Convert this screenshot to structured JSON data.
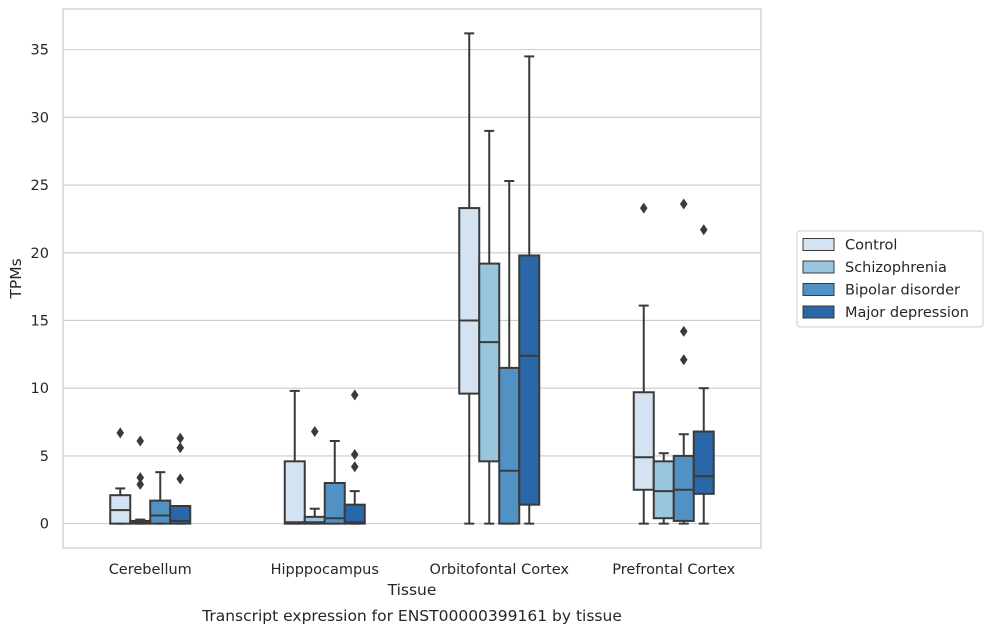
{
  "chart_data": {
    "type": "box",
    "title": "",
    "caption": "Transcript expression for ENST00000399161 by tissue",
    "xlabel": "Tissue",
    "ylabel": "TPMs",
    "ylim": [
      -1.8,
      38
    ],
    "yticks": [
      0,
      5,
      10,
      15,
      20,
      25,
      30,
      35
    ],
    "grid": "horizontal",
    "legend_position": "right",
    "categories": [
      "Cerebellum",
      "Hipppocampus",
      "Orbitofontal Cortex",
      "Prefrontal Cortex"
    ],
    "series": [
      {
        "name": "Control",
        "color": "#d3e3f2",
        "boxes": [
          {
            "min": 0,
            "q1": 0,
            "median": 1.0,
            "q3": 2.1,
            "max": 2.6,
            "outliers": [
              6.7
            ]
          },
          {
            "min": 0,
            "q1": 0,
            "median": 0.1,
            "q3": 4.6,
            "max": 9.8,
            "outliers": []
          },
          {
            "min": 0,
            "q1": 9.6,
            "median": 15.0,
            "q3": 23.3,
            "max": 36.2,
            "outliers": []
          },
          {
            "min": 0,
            "q1": 2.5,
            "median": 4.9,
            "q3": 9.7,
            "max": 16.1,
            "outliers": [
              23.3
            ]
          }
        ]
      },
      {
        "name": "Schizophrenia",
        "color": "#9ac5df",
        "boxes": [
          {
            "min": 0,
            "q1": 0,
            "median": 0.1,
            "q3": 0.2,
            "max": 0.3,
            "outliers": [
              6.1,
              3.4,
              2.9
            ]
          },
          {
            "min": 0,
            "q1": 0,
            "median": 0.1,
            "q3": 0.5,
            "max": 1.1,
            "outliers": [
              6.8
            ]
          },
          {
            "min": 0,
            "q1": 4.6,
            "median": 13.4,
            "q3": 19.2,
            "max": 29.0,
            "outliers": []
          },
          {
            "min": 0,
            "q1": 0.4,
            "median": 2.4,
            "q3": 4.6,
            "max": 5.2,
            "outliers": []
          }
        ]
      },
      {
        "name": "Bipolar disorder",
        "color": "#5191c4",
        "boxes": [
          {
            "min": 0,
            "q1": 0,
            "median": 0.6,
            "q3": 1.7,
            "max": 3.8,
            "outliers": []
          },
          {
            "min": 0,
            "q1": 0,
            "median": 0.4,
            "q3": 3.0,
            "max": 6.1,
            "outliers": []
          },
          {
            "min": 0,
            "q1": 0,
            "median": 3.9,
            "q3": 11.5,
            "max": 25.3,
            "outliers": []
          },
          {
            "min": 0,
            "q1": 0.2,
            "median": 2.5,
            "q3": 5.0,
            "max": 6.6,
            "outliers": [
              14.2,
              12.1,
              23.6
            ]
          }
        ]
      },
      {
        "name": "Major depression",
        "color": "#2a67a9",
        "boxes": [
          {
            "min": 0,
            "q1": 0,
            "median": 0.2,
            "q3": 1.3,
            "max": 1.3,
            "outliers": [
              6.3,
              5.6,
              3.3
            ]
          },
          {
            "min": 0,
            "q1": 0,
            "median": 0.1,
            "q3": 1.4,
            "max": 2.4,
            "outliers": [
              9.5,
              5.1,
              4.2
            ]
          },
          {
            "min": 0,
            "q1": 1.4,
            "median": 12.4,
            "q3": 19.8,
            "max": 34.5,
            "outliers": []
          },
          {
            "min": 0,
            "q1": 2.2,
            "median": 3.5,
            "q3": 6.8,
            "max": 10.0,
            "outliers": [
              21.7
            ]
          }
        ]
      }
    ]
  }
}
